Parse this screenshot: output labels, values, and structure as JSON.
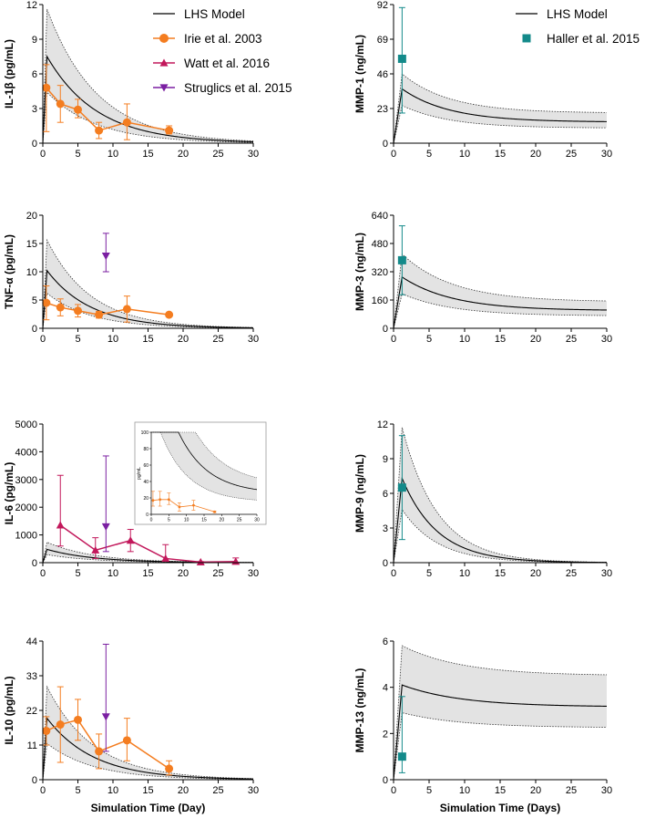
{
  "colors": {
    "model": "#000000",
    "band": "#e3e3e3",
    "irie": "#f47d20",
    "watt": "#c2185b",
    "struglics": "#7b1fa2",
    "haller": "#138a8a"
  },
  "legends": {
    "left": [
      {
        "key": "model",
        "label": "LHS Model",
        "marker": "line"
      },
      {
        "key": "irie",
        "label": "Irie et al. 2003",
        "marker": "circle"
      },
      {
        "key": "watt",
        "label": "Watt et al. 2016",
        "marker": "triangle-up"
      },
      {
        "key": "struglics",
        "label": "Struglics et al. 2015",
        "marker": "triangle-down"
      }
    ],
    "right": [
      {
        "key": "model",
        "label": "LHS Model",
        "marker": "line"
      },
      {
        "key": "haller",
        "label": "Haller et al. 2015",
        "marker": "square"
      }
    ]
  },
  "chart_data": [
    {
      "id": "il1b",
      "type": "line",
      "ylabel": "IL-1β (pg/mL)",
      "xlabel": "",
      "xlim": [
        0,
        30
      ],
      "ylim": [
        0,
        12
      ],
      "xticks": [
        "0",
        "5",
        "10",
        "15",
        "20",
        "25",
        "30"
      ],
      "yticks": [
        "0",
        "3",
        "6",
        "9",
        "12"
      ],
      "model": {
        "peak": 7.5,
        "tpeak": 0.6,
        "decay": 0.14,
        "final": 0,
        "upper_ratio": 1.55,
        "lower_ratio": 0.6,
        "upper_peak": 11.6,
        "lower_peak": 4.4
      },
      "series": [
        {
          "name": "Irie et al. 2003",
          "key": "irie",
          "marker": "circle",
          "connect": true,
          "points": [
            {
              "x": 0.5,
              "y": 4.8,
              "lo": 1.0,
              "hi": 6.8
            },
            {
              "x": 2.5,
              "y": 3.4,
              "lo": 1.8,
              "hi": 5.0
            },
            {
              "x": 5,
              "y": 2.9,
              "lo": 2.2,
              "hi": 3.8
            },
            {
              "x": 8,
              "y": 1.1,
              "lo": 0.4,
              "hi": 1.8
            },
            {
              "x": 12,
              "y": 1.8,
              "lo": 0.3,
              "hi": 3.4
            },
            {
              "x": 18,
              "y": 1.1,
              "lo": 0.8,
              "hi": 1.5
            }
          ]
        }
      ]
    },
    {
      "id": "tnfa",
      "type": "line",
      "ylabel": "TNF-α (pg/mL)",
      "xlabel": "",
      "xlim": [
        0,
        30
      ],
      "ylim": [
        0,
        20
      ],
      "xticks": [
        "0",
        "5",
        "10",
        "15",
        "20",
        "25",
        "30"
      ],
      "yticks": [
        "0",
        "5",
        "10",
        "15",
        "20"
      ],
      "model": {
        "peak": 10.2,
        "tpeak": 0.6,
        "decay": 0.16,
        "final": 0,
        "upper_peak": 15.6,
        "lower_peak": 6.2
      },
      "series": [
        {
          "name": "Irie et al. 2003",
          "key": "irie",
          "marker": "circle",
          "connect": true,
          "points": [
            {
              "x": 0.5,
              "y": 4.5,
              "lo": 1.5,
              "hi": 7.5
            },
            {
              "x": 2.5,
              "y": 3.7,
              "lo": 2.2,
              "hi": 5.2
            },
            {
              "x": 5,
              "y": 3.1,
              "lo": 2.0,
              "hi": 4.2
            },
            {
              "x": 8,
              "y": 2.4,
              "lo": 1.8,
              "hi": 3.0
            },
            {
              "x": 12,
              "y": 3.4,
              "lo": 1.1,
              "hi": 5.7
            },
            {
              "x": 18,
              "y": 2.4,
              "lo": 2.4,
              "hi": 2.4
            }
          ]
        },
        {
          "name": "Struglics et al. 2015",
          "key": "struglics",
          "marker": "triangle-down",
          "connect": false,
          "points": [
            {
              "x": 9,
              "y": 12.8,
              "lo": 10.0,
              "hi": 16.8
            }
          ]
        }
      ]
    },
    {
      "id": "il6",
      "type": "line",
      "ylabel": "IL-6 (pg/mL)",
      "xlabel": "",
      "xlim": [
        0,
        30
      ],
      "ylim": [
        0,
        5000
      ],
      "xticks": [
        "0",
        "5",
        "10",
        "15",
        "20",
        "25",
        "30"
      ],
      "yticks": [
        "0",
        "1000",
        "2000",
        "3000",
        "4000",
        "5000"
      ],
      "model": {
        "peak": 480,
        "tpeak": 0.6,
        "decay": 0.15,
        "final": 0,
        "upper_peak": 740,
        "lower_peak": 290
      },
      "series": [
        {
          "name": "Watt et al. 2016",
          "key": "watt",
          "marker": "triangle-up",
          "connect": true,
          "points": [
            {
              "x": 2.5,
              "y": 1350,
              "lo": 600,
              "hi": 3150
            },
            {
              "x": 7.5,
              "y": 450,
              "lo": 150,
              "hi": 900
            },
            {
              "x": 12.5,
              "y": 800,
              "lo": 400,
              "hi": 1200
            },
            {
              "x": 17.5,
              "y": 150,
              "lo": 50,
              "hi": 650
            },
            {
              "x": 22.5,
              "y": 20,
              "lo": 10,
              "hi": 40
            },
            {
              "x": 27.5,
              "y": 40,
              "lo": 10,
              "hi": 170
            }
          ]
        },
        {
          "name": "Struglics et al. 2015",
          "key": "struglics",
          "marker": "triangle-down",
          "connect": false,
          "points": [
            {
              "x": 9,
              "y": 1300,
              "lo": 400,
              "hi": 3850
            }
          ]
        },
        {
          "name": "Irie et al. 2003",
          "key": "irie",
          "marker": "circle",
          "connect": true,
          "points": [
            {
              "x": 0.5,
              "y": 17,
              "lo": 10,
              "hi": 28
            },
            {
              "x": 2.5,
              "y": 18,
              "lo": 10,
              "hi": 28
            },
            {
              "x": 5,
              "y": 18,
              "lo": 12,
              "hi": 26
            },
            {
              "x": 8,
              "y": 9,
              "lo": 4,
              "hi": 14
            },
            {
              "x": 12,
              "y": 11,
              "lo": 5,
              "hi": 17
            },
            {
              "x": 18,
              "y": 3,
              "lo": 2,
              "hi": 4
            }
          ]
        }
      ],
      "inset": {
        "ylabel": "pg/mL",
        "xlim": [
          0,
          30
        ],
        "ylim": [
          0,
          100
        ],
        "xticks": [
          "0",
          "5",
          "10",
          "15",
          "20",
          "25",
          "30"
        ],
        "yticks": [
          "0",
          "20",
          "40",
          "60",
          "80",
          "100"
        ]
      }
    },
    {
      "id": "il10",
      "type": "line",
      "ylabel": "IL-10 (pg/mL)",
      "xlabel": "Simulation Time (Day)",
      "xlim": [
        0,
        30
      ],
      "ylim": [
        0,
        44
      ],
      "xticks": [
        "0",
        "5",
        "10",
        "15",
        "20",
        "25",
        "30"
      ],
      "yticks": [
        "0",
        "11",
        "22",
        "33",
        "44"
      ],
      "model": {
        "peak": 19.5,
        "tpeak": 0.6,
        "decay": 0.15,
        "final": 0,
        "upper_peak": 29.5,
        "lower_peak": 11.5
      },
      "series": [
        {
          "name": "Irie et al. 2003",
          "key": "irie",
          "marker": "circle",
          "connect": true,
          "points": [
            {
              "x": 0.5,
              "y": 15.5,
              "lo": 11,
              "hi": 20
            },
            {
              "x": 2.5,
              "y": 17.5,
              "lo": 5.5,
              "hi": 29.5
            },
            {
              "x": 5,
              "y": 19,
              "lo": 12.5,
              "hi": 25.5
            },
            {
              "x": 8,
              "y": 9,
              "lo": 3.5,
              "hi": 14.5
            },
            {
              "x": 12,
              "y": 12.5,
              "lo": 6,
              "hi": 19.5
            },
            {
              "x": 18,
              "y": 3.5,
              "lo": 1.5,
              "hi": 6
            }
          ]
        },
        {
          "name": "Struglics et al. 2015",
          "key": "struglics",
          "marker": "triangle-down",
          "connect": false,
          "points": [
            {
              "x": 9,
              "y": 20,
              "lo": 9,
              "hi": 43
            }
          ]
        }
      ]
    },
    {
      "id": "mmp1",
      "type": "line",
      "ylabel": "MMP-1 (ng/mL)",
      "xlabel": "",
      "xlim": [
        0,
        30
      ],
      "ylim": [
        0,
        92
      ],
      "xticks": [
        "0",
        "5",
        "10",
        "15",
        "20",
        "25",
        "30"
      ],
      "yticks": [
        "0",
        "23",
        "46",
        "69",
        "92"
      ],
      "model": {
        "peak": 36,
        "tpeak": 1.2,
        "decay": 0.15,
        "final": 14,
        "upper_peak": 46,
        "upper_final": 20,
        "lower_peak": 25,
        "lower_final": 10
      },
      "series": [
        {
          "name": "Haller et al. 2015",
          "key": "haller",
          "marker": "square",
          "connect": false,
          "points": [
            {
              "x": 1.2,
              "y": 56,
              "lo": 20,
              "hi": 90
            }
          ]
        }
      ]
    },
    {
      "id": "mmp3",
      "type": "line",
      "ylabel": "MMP-3 (ng/mL)",
      "xlabel": "",
      "xlim": [
        0,
        30
      ],
      "ylim": [
        0,
        640
      ],
      "xticks": [
        "0",
        "5",
        "10",
        "15",
        "20",
        "25",
        "30"
      ],
      "yticks": [
        "0",
        "160",
        "320",
        "480",
        "640"
      ],
      "model": {
        "peak": 290,
        "tpeak": 1.2,
        "decay": 0.14,
        "final": 100,
        "upper_peak": 420,
        "upper_final": 150,
        "lower_peak": 195,
        "lower_final": 70
      },
      "series": [
        {
          "name": "Haller et al. 2015",
          "key": "haller",
          "marker": "square",
          "connect": false,
          "points": [
            {
              "x": 1.2,
              "y": 385,
              "lo": 190,
              "hi": 580
            }
          ]
        }
      ]
    },
    {
      "id": "mmp9",
      "type": "line",
      "ylabel": "MMP-9 (ng/mL)",
      "xlabel": "",
      "xlim": [
        0,
        30
      ],
      "ylim": [
        0,
        12
      ],
      "xticks": [
        "0",
        "5",
        "10",
        "15",
        "20",
        "25",
        "30"
      ],
      "yticks": [
        "0",
        "3",
        "6",
        "9",
        "12"
      ],
      "model": {
        "peak": 7.3,
        "tpeak": 1.2,
        "decay": 0.2,
        "final": 0,
        "upper_peak": 11.7,
        "upper_final": 0,
        "lower_peak": 4.6,
        "lower_final": 0
      },
      "series": [
        {
          "name": "Haller et al. 2015",
          "key": "haller",
          "marker": "square",
          "connect": false,
          "points": [
            {
              "x": 1.2,
              "y": 6.5,
              "lo": 2.0,
              "hi": 11.0
            }
          ]
        }
      ]
    },
    {
      "id": "mmp13",
      "type": "line",
      "ylabel": "MMP-13 (ng/mL)",
      "xlabel": "Simulation Time (Days)",
      "xlim": [
        0,
        30
      ],
      "ylim": [
        0,
        6
      ],
      "xticks": [
        "0",
        "5",
        "10",
        "15",
        "20",
        "25",
        "30"
      ],
      "yticks": [
        "0",
        "2",
        "4",
        "6"
      ],
      "model": {
        "peak": 4.1,
        "tpeak": 1.2,
        "decay": 0.12,
        "final": 3.15,
        "upper_peak": 5.8,
        "upper_final": 4.5,
        "lower_peak": 2.9,
        "lower_final": 2.25
      },
      "series": [
        {
          "name": "Haller et al. 2015",
          "key": "haller",
          "marker": "square",
          "connect": false,
          "points": [
            {
              "x": 1.2,
              "y": 1.0,
              "lo": 0.3,
              "hi": 3.6
            }
          ]
        }
      ]
    }
  ]
}
